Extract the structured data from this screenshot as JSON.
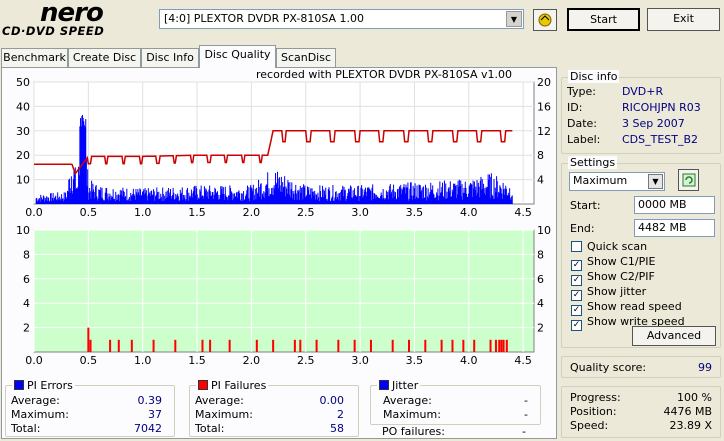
{
  "logo": {
    "top": "nero",
    "bottom": "CD·DVD SPEED"
  },
  "drive": {
    "selected": "[4:0]  PLEXTOR DVDR   PX-810SA 1.00"
  },
  "toolbar": {
    "start_label": "Start",
    "exit_label": "Exit"
  },
  "tabs": [
    {
      "label": "Benchmark"
    },
    {
      "label": "Create Disc"
    },
    {
      "label": "Disc Info"
    },
    {
      "label": "Disc Quality"
    },
    {
      "label": "ScanDisc"
    }
  ],
  "recorded_with": "recorded with PLEXTOR DVDR    PX-810SA  v1.00",
  "disc_info": {
    "title": "Disc info",
    "type_label": "Type:",
    "type": "DVD+R",
    "id_label": "ID:",
    "id": "RICOHJPN R03",
    "date_label": "Date:",
    "date": "3 Sep 2007",
    "label_label": "Label:",
    "label": "CDS_TEST_B2"
  },
  "settings": {
    "title": "Settings",
    "speed": "Maximum",
    "start_label": "Start:",
    "start": "0000 MB",
    "end_label": "End:",
    "end": "4482 MB",
    "quick_scan": "Quick scan",
    "show_c1": "Show C1/PIE",
    "show_c2": "Show C2/PIF",
    "show_jitter": "Show jitter",
    "show_read": "Show read speed",
    "show_write": "Show write speed",
    "advanced": "Advanced",
    "check": "✓"
  },
  "quality": {
    "label": "Quality score:",
    "value": "99"
  },
  "progress": {
    "progress_label": "Progress:",
    "progress": "100 %",
    "position_label": "Position:",
    "position": "4476 MB",
    "speed_label": "Speed:",
    "speed": "23.89 X"
  },
  "pi_errors": {
    "title": "PI Errors",
    "avg_label": "Average:",
    "avg": "0.39",
    "max_label": "Maximum:",
    "max": "37",
    "total_label": "Total:",
    "total": "7042"
  },
  "pi_failures": {
    "title": "PI Failures",
    "avg_label": "Average:",
    "avg": "0.00",
    "max_label": "Maximum:",
    "max": "2",
    "total_label": "Total:",
    "total": "58"
  },
  "jitter": {
    "title": "Jitter",
    "avg_label": "Average:",
    "avg": "-",
    "max_label": "Maximum:",
    "max": "-",
    "po_label": "PO failures:",
    "po": "-"
  },
  "colors": {
    "pie": "#0000ff",
    "pif": "#ff0000",
    "read_speed": "#cc0000",
    "grid_bottom": "#ccffcc"
  },
  "chart_data": [
    {
      "type": "area",
      "title": "PI Errors",
      "x_ticks": [
        "0.0",
        "0.5",
        "1.0",
        "1.5",
        "2.0",
        "2.5",
        "3.0",
        "3.5",
        "4.0",
        "4.5"
      ],
      "y_left_ticks": [
        "10",
        "20",
        "30",
        "40",
        "50"
      ],
      "y_right_ticks": [
        "4",
        "8",
        "12",
        "16",
        "20"
      ],
      "xlim": [
        0,
        4.5
      ],
      "ylim": [
        0,
        50
      ],
      "y2lim": [
        0,
        20
      ],
      "series": [
        {
          "x": [
            0.0,
            0.3,
            0.35,
            0.4,
            0.45,
            0.5,
            0.6,
            1.0,
            1.5,
            2.0,
            2.2,
            2.5,
            3.0,
            3.5,
            4.0,
            4.2,
            4.4
          ],
          "values": [
            3,
            4,
            18,
            8,
            36,
            8,
            6,
            5,
            6,
            6,
            12,
            6,
            6,
            7,
            8,
            10,
            7
          ]
        },
        {
          "x": [
            0.0,
            0.35,
            0.38,
            0.5,
            1.0,
            1.5,
            2.15,
            2.2,
            2.5,
            3.0,
            3.5,
            4.0,
            4.4
          ],
          "values": [
            6.5,
            6.5,
            5,
            7.8,
            7.8,
            8,
            8,
            12,
            12,
            12,
            12,
            12,
            12
          ]
        }
      ]
    },
    {
      "type": "bar",
      "title": "PI Failures",
      "x_ticks": [
        "0.0",
        "0.5",
        "1.0",
        "1.5",
        "2.0",
        "2.5",
        "3.0",
        "3.5",
        "4.0",
        "4.5"
      ],
      "y_left_ticks": [
        "2",
        "4",
        "6",
        "8",
        "10"
      ],
      "y_right_ticks": [
        "2",
        "4",
        "6",
        "8",
        "10"
      ],
      "xlim": [
        0,
        4.5
      ],
      "ylim": [
        0,
        10
      ],
      "x": [
        0.5,
        0.52,
        0.7,
        0.78,
        0.9,
        1.1,
        1.3,
        1.55,
        1.62,
        1.8,
        2.05,
        2.2,
        2.4,
        2.45,
        2.6,
        2.8,
        2.95,
        3.1,
        3.3,
        3.45,
        3.6,
        3.75,
        3.85,
        3.95,
        4.05,
        4.2,
        4.25,
        4.28,
        4.3,
        4.32,
        4.35
      ],
      "values": [
        2,
        1,
        1,
        1,
        1,
        1,
        1,
        1,
        1,
        1,
        1,
        1,
        1,
        1,
        1,
        1,
        1,
        1,
        1,
        1,
        1,
        1,
        1,
        1,
        1,
        1,
        1,
        1,
        1,
        1,
        1
      ]
    }
  ]
}
